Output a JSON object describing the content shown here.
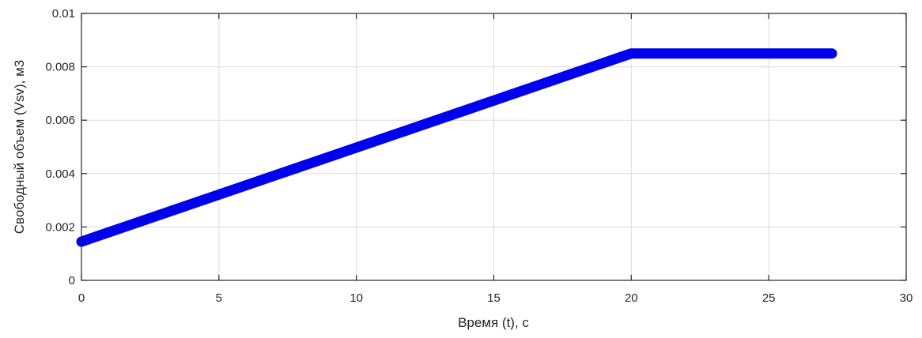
{
  "chart_data": {
    "type": "line",
    "title": "",
    "xlabel": "Время (t), с",
    "ylabel": "Свободный объем (Vsv), м3",
    "xlim": [
      0,
      30
    ],
    "ylim": [
      0,
      0.01
    ],
    "xticks": [
      0,
      5,
      10,
      15,
      20,
      25,
      30
    ],
    "yticks": [
      0,
      0.002,
      0.004,
      0.006,
      0.008,
      0.01
    ],
    "xtick_labels": [
      "0",
      "5",
      "10",
      "15",
      "20",
      "25",
      "30"
    ],
    "ytick_labels": [
      "0",
      "0.002",
      "0.004",
      "0.006",
      "0.008",
      "0.01"
    ],
    "grid": true,
    "legend": null,
    "series": [
      {
        "color": "#0000ee",
        "x": [
          0,
          20,
          27.3
        ],
        "y": [
          0.00145,
          0.0085,
          0.0085
        ]
      }
    ]
  }
}
